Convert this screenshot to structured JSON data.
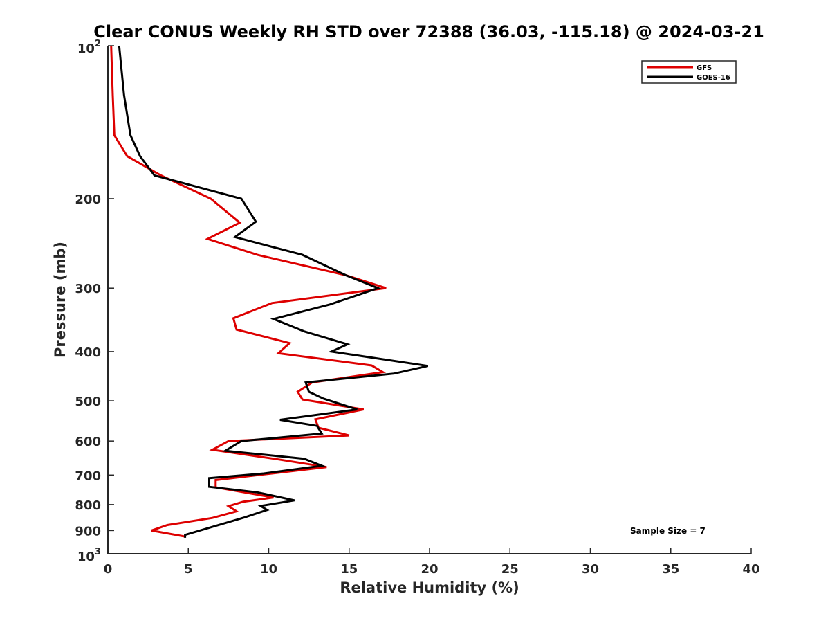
{
  "chart_data": {
    "type": "line",
    "title": "Clear CONUS Weekly RH STD over 72388 (36.03, -115.18) @ 2024-03-21",
    "xlabel": "Relative Humidity (%)",
    "ylabel": "Pressure (mb)",
    "xlim": [
      0,
      40
    ],
    "ylim": [
      100,
      1000
    ],
    "yscale": "log",
    "y_reversed": true,
    "grid": false,
    "legend_position": "top-right",
    "x_ticks": [
      "0",
      "5",
      "10",
      "15",
      "20",
      "25",
      "30",
      "35",
      "40"
    ],
    "x_tick_values": [
      0,
      5,
      10,
      15,
      20,
      25,
      30,
      35,
      40
    ],
    "y_ticks": [
      {
        "value": 100,
        "base": "10",
        "exp": "2"
      },
      {
        "value": 200,
        "label": "200"
      },
      {
        "value": 300,
        "label": "300"
      },
      {
        "value": 400,
        "label": "400"
      },
      {
        "value": 500,
        "label": "500"
      },
      {
        "value": 600,
        "label": "600"
      },
      {
        "value": 700,
        "label": "700"
      },
      {
        "value": 800,
        "label": "800"
      },
      {
        "value": 900,
        "label": "900"
      },
      {
        "value": 1000,
        "base": "10",
        "exp": "3"
      }
    ],
    "annotation": "Sample Size = 7",
    "series": [
      {
        "name": "GFS",
        "color": "#dd0000",
        "points": [
          [
            0.2,
            100
          ],
          [
            0.3,
            125
          ],
          [
            0.4,
            150
          ],
          [
            1.2,
            165
          ],
          [
            3.3,
            180
          ],
          [
            6.4,
            200
          ],
          [
            8.2,
            223
          ],
          [
            6.2,
            240
          ],
          [
            9.3,
            258
          ],
          [
            14.8,
            283
          ],
          [
            17.3,
            300
          ],
          [
            10.2,
            321
          ],
          [
            7.8,
            344
          ],
          [
            8.0,
            362
          ],
          [
            11.3,
            385
          ],
          [
            10.6,
            403
          ],
          [
            16.4,
            426
          ],
          [
            17.1,
            439
          ],
          [
            12.7,
            460
          ],
          [
            11.8,
            480
          ],
          [
            12.1,
            497
          ],
          [
            15.9,
            520
          ],
          [
            12.9,
            544
          ],
          [
            13.1,
            565
          ],
          [
            15.0,
            585
          ],
          [
            7.5,
            600
          ],
          [
            6.5,
            624
          ],
          [
            10.6,
            652
          ],
          [
            13.6,
            675
          ],
          [
            10.2,
            695
          ],
          [
            6.7,
            716
          ],
          [
            6.7,
            740
          ],
          [
            10.3,
            775
          ],
          [
            8.4,
            790
          ],
          [
            7.5,
            806
          ],
          [
            8.0,
            825
          ],
          [
            6.5,
            850
          ],
          [
            3.7,
            878
          ],
          [
            2.7,
            900
          ],
          [
            4.8,
            925
          ]
        ]
      },
      {
        "name": "GOES-16",
        "color": "#000000",
        "points": [
          [
            0.7,
            100
          ],
          [
            1.0,
            125
          ],
          [
            1.4,
            150
          ],
          [
            2.0,
            165
          ],
          [
            2.9,
            180
          ],
          [
            8.3,
            200
          ],
          [
            9.2,
            222
          ],
          [
            7.9,
            238
          ],
          [
            12.1,
            258
          ],
          [
            14.8,
            283
          ],
          [
            16.8,
            300
          ],
          [
            13.8,
            323
          ],
          [
            10.3,
            345
          ],
          [
            12.2,
            365
          ],
          [
            14.9,
            387
          ],
          [
            13.9,
            400
          ],
          [
            19.9,
            427
          ],
          [
            17.8,
            442
          ],
          [
            12.3,
            460
          ],
          [
            12.5,
            480
          ],
          [
            13.4,
            495
          ],
          [
            15.5,
            520
          ],
          [
            10.7,
            545
          ],
          [
            13.0,
            560
          ],
          [
            13.3,
            580
          ],
          [
            8.3,
            600
          ],
          [
            7.3,
            627
          ],
          [
            12.2,
            650
          ],
          [
            13.3,
            671
          ],
          [
            9.7,
            695
          ],
          [
            6.3,
            710
          ],
          [
            6.3,
            738
          ],
          [
            9.3,
            757
          ],
          [
            11.6,
            785
          ],
          [
            9.5,
            805
          ],
          [
            9.9,
            820
          ],
          [
            8.5,
            848
          ],
          [
            4.8,
            918
          ],
          [
            4.8,
            930
          ]
        ]
      }
    ]
  }
}
